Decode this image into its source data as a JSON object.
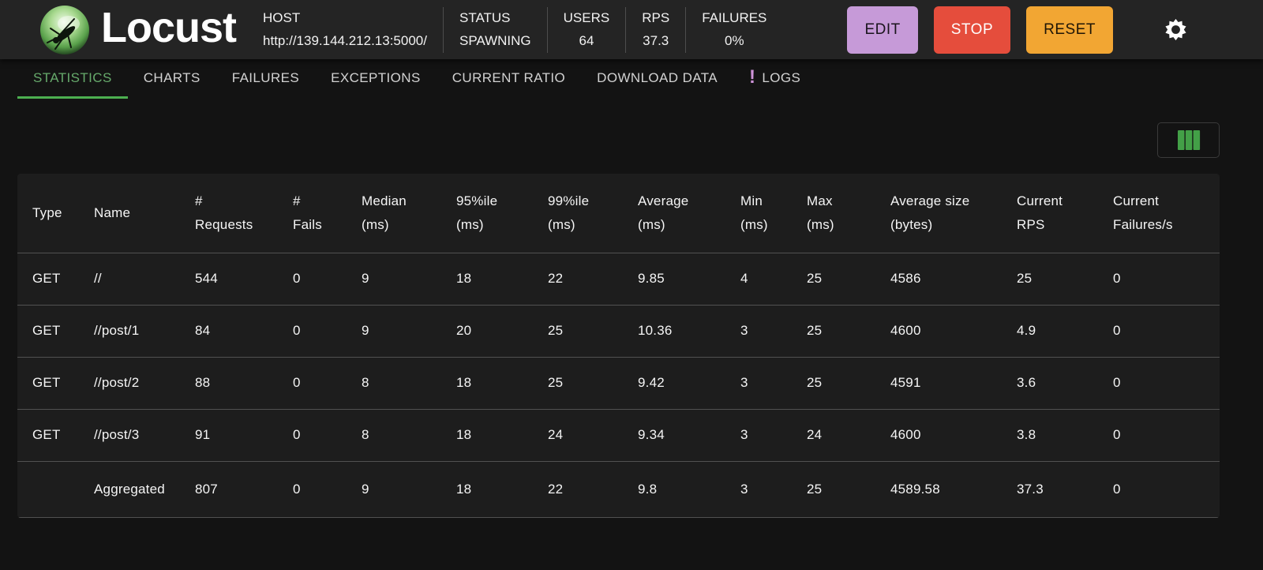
{
  "header": {
    "logo_text": "Locust",
    "host": {
      "label": "HOST",
      "value": "http://139.144.212.13:5000/"
    },
    "status": {
      "label": "STATUS",
      "value": "SPAWNING"
    },
    "users": {
      "label": "USERS",
      "value": "64"
    },
    "rps": {
      "label": "RPS",
      "value": "37.3"
    },
    "failures": {
      "label": "FAILURES",
      "value": "0%"
    },
    "buttons": {
      "edit": "EDIT",
      "stop": "STOP",
      "reset": "RESET"
    },
    "icons": {
      "settings": "gear-icon",
      "logo": "locust-logo"
    }
  },
  "colors": {
    "edit_button": "#c69ad8",
    "stop_button": "#e54d3c",
    "reset_button": "#f2a633",
    "active_tab_green": "#4caf50",
    "logs_badge_purple": "#ce93d8",
    "columns_icon_green": "#43a047",
    "appbar_bg": "#242424",
    "table_bg": "#1d1d1d",
    "page_bg": "#131313"
  },
  "tabs": [
    {
      "label": "STATISTICS",
      "active": true
    },
    {
      "label": "CHARTS",
      "active": false
    },
    {
      "label": "FAILURES",
      "active": false
    },
    {
      "label": "EXCEPTIONS",
      "active": false
    },
    {
      "label": "CURRENT RATIO",
      "active": false
    },
    {
      "label": "DOWNLOAD DATA",
      "active": false
    },
    {
      "label": "LOGS",
      "active": false,
      "badge": "!"
    }
  ],
  "toolbar": {
    "columns_icon": "table-columns-icon"
  },
  "table": {
    "columns": [
      "Type",
      "Name",
      "# Requests",
      "# Fails",
      "Median (ms)",
      "95%ile (ms)",
      "99%ile (ms)",
      "Average (ms)",
      "Min (ms)",
      "Max (ms)",
      "Average size (bytes)",
      "Current RPS",
      "Current Failures/s"
    ],
    "rows": [
      [
        "GET",
        "//",
        "544",
        "0",
        "9",
        "18",
        "22",
        "9.85",
        "4",
        "25",
        "4586",
        "25",
        "0"
      ],
      [
        "GET",
        "//post/1",
        "84",
        "0",
        "9",
        "20",
        "25",
        "10.36",
        "3",
        "25",
        "4600",
        "4.9",
        "0"
      ],
      [
        "GET",
        "//post/2",
        "88",
        "0",
        "8",
        "18",
        "25",
        "9.42",
        "3",
        "25",
        "4591",
        "3.6",
        "0"
      ],
      [
        "GET",
        "//post/3",
        "91",
        "0",
        "8",
        "18",
        "24",
        "9.34",
        "3",
        "24",
        "4600",
        "3.8",
        "0"
      ],
      [
        "",
        "Aggregated",
        "807",
        "0",
        "9",
        "18",
        "22",
        "9.8",
        "3",
        "25",
        "4589.58",
        "37.3",
        "0"
      ]
    ]
  }
}
